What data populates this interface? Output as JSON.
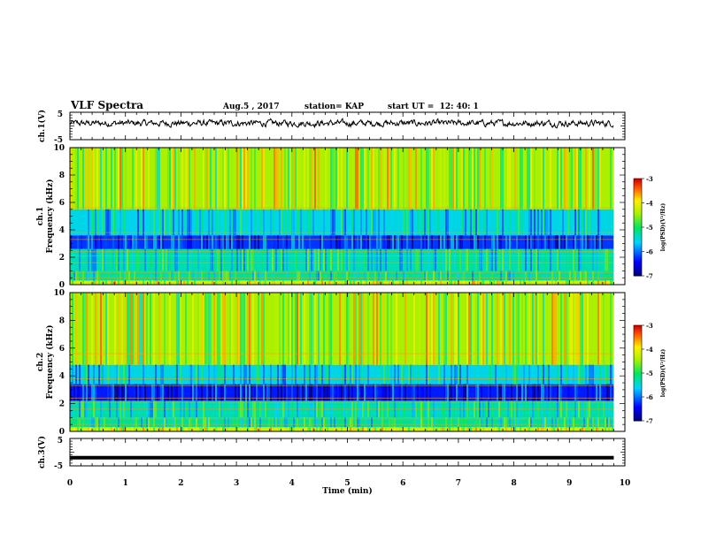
{
  "header": {
    "title": "VLF Spectra",
    "date": "Aug.5 , 2017",
    "station": "station= KAP",
    "start": "start UT =  12: 40: 1"
  },
  "chart_data": [
    {
      "type": "line",
      "panel": "ch1-waveform",
      "ylabel": "ch.1(V)",
      "ylim": [
        -5,
        5
      ],
      "yticks": [
        "5",
        "-5"
      ],
      "xlim": [
        0,
        10
      ],
      "series": [
        {
          "name": "",
          "color": "#000000",
          "baseline": 1,
          "noise_amplitude": 2.2
        }
      ]
    },
    {
      "type": "heatmap",
      "panel": "ch1-spectrogram",
      "ylabel": "ch.1\nFrequency (kHz)",
      "ylim": [
        0,
        10
      ],
      "yticks": [
        "0",
        "2",
        "4",
        "6",
        "8",
        "10"
      ],
      "xlim": [
        0,
        10
      ],
      "data_end_min": 9.8,
      "colorbar": {
        "label": "log(PSD)(V²/Hz)",
        "range": [
          -7,
          -3
        ],
        "ticks": [
          "-3",
          "-4",
          "-5",
          "-6",
          "-7"
        ]
      },
      "bands": [
        {
          "from_khz": 0,
          "to_khz": 0.3,
          "log_psd": -4.2
        },
        {
          "from_khz": 0.3,
          "to_khz": 1.0,
          "log_psd": -5.2
        },
        {
          "from_khz": 1.0,
          "to_khz": 2.6,
          "log_psd": -5.3
        },
        {
          "from_khz": 2.6,
          "to_khz": 3.6,
          "log_psd": -6.2
        },
        {
          "from_khz": 3.6,
          "to_khz": 5.5,
          "log_psd": -5.5
        },
        {
          "from_khz": 5.5,
          "to_khz": 10,
          "log_psd": -4.4
        }
      ]
    },
    {
      "type": "heatmap",
      "panel": "ch2-spectrogram",
      "ylabel": "ch.2\nFrequency (kHz)",
      "ylim": [
        0,
        10
      ],
      "yticks": [
        "0",
        "2",
        "4",
        "6",
        "8",
        "10"
      ],
      "xlim": [
        0,
        10
      ],
      "data_end_min": 9.8,
      "colorbar": {
        "label": "log(PSD)(V²/Hz)",
        "range": [
          -7,
          -3
        ],
        "ticks": [
          "-3",
          "-4",
          "-5",
          "-6",
          "-7"
        ]
      },
      "bands": [
        {
          "from_khz": 0,
          "to_khz": 0.3,
          "log_psd": -4.2
        },
        {
          "from_khz": 0.3,
          "to_khz": 1.0,
          "log_psd": -5.2
        },
        {
          "from_khz": 1.0,
          "to_khz": 2.2,
          "log_psd": -5.3
        },
        {
          "from_khz": 2.2,
          "to_khz": 3.4,
          "log_psd": -6.3
        },
        {
          "from_khz": 3.4,
          "to_khz": 4.8,
          "log_psd": -5.5
        },
        {
          "from_khz": 4.8,
          "to_khz": 10,
          "log_psd": -4.4
        }
      ]
    },
    {
      "type": "line",
      "panel": "ch3-waveform",
      "ylabel": "ch.3(V)",
      "ylim": [
        -5,
        5
      ],
      "yticks": [
        "5",
        "-5"
      ],
      "xlim": [
        0,
        10
      ],
      "xlabel": "Time (min)",
      "xticks": [
        "0",
        "1",
        "2",
        "3",
        "4",
        "5",
        "6",
        "7",
        "8",
        "9",
        "10"
      ],
      "series": [
        {
          "name": "",
          "color": "#000000",
          "constant": -2,
          "end": 9.8
        }
      ]
    }
  ]
}
